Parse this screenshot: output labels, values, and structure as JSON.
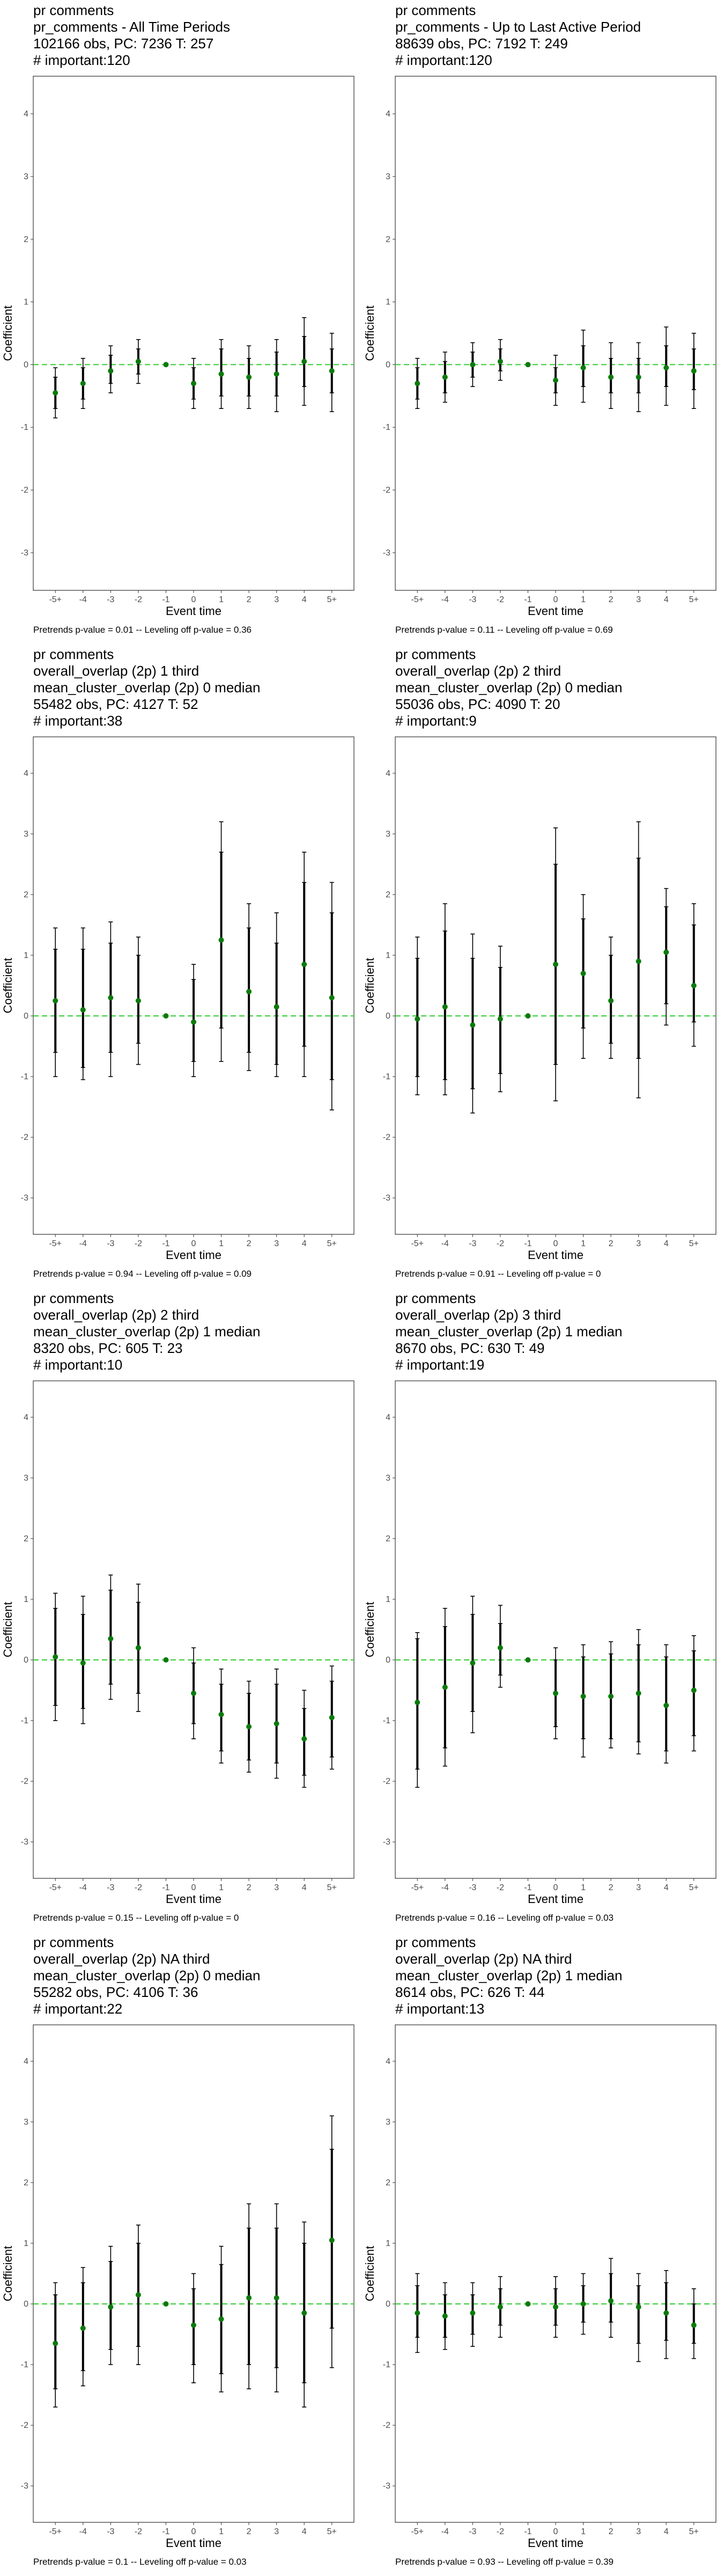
{
  "charts": [
    {
      "header": [
        "pr comments",
        "pr_comments - All Time Periods",
        "102166 obs, PC: 7236 T: 257",
        "# important:120"
      ],
      "footer": "Pretrends p-value = 0.01 -- Leveling off p-value = 0.36"
    },
    {
      "header": [
        "pr comments",
        "pr_comments - Up to Last Active Period",
        "88639 obs, PC: 7192 T: 249",
        "# important:120"
      ],
      "footer": "Pretrends p-value = 0.11 -- Leveling off p-value = 0.69"
    },
    {
      "header": [
        "pr comments",
        "overall_overlap (2p) 1 third",
        "mean_cluster_overlap (2p) 0 median",
        "55482 obs, PC: 4127 T: 52",
        "# important:38"
      ],
      "footer": "Pretrends p-value = 0.94 -- Leveling off p-value = 0.09"
    },
    {
      "header": [
        "pr comments",
        "overall_overlap (2p) 2 third",
        "mean_cluster_overlap (2p) 0 median",
        "55036 obs, PC: 4090 T: 20",
        "# important:9"
      ],
      "footer": "Pretrends p-value = 0.91 -- Leveling off p-value = 0"
    },
    {
      "header": [
        "pr comments",
        "overall_overlap (2p) 2 third",
        "mean_cluster_overlap (2p) 1 median",
        "8320 obs, PC: 605 T: 23",
        "# important:10"
      ],
      "footer": "Pretrends p-value = 0.15 -- Leveling off p-value = 0"
    },
    {
      "header": [
        "pr comments",
        "overall_overlap (2p) 3 third",
        "mean_cluster_overlap (2p) 1 median",
        "8670 obs, PC: 630 T: 49",
        "# important:19"
      ],
      "footer": "Pretrends p-value = 0.16 -- Leveling off p-value = 0.03"
    },
    {
      "header": [
        "pr comments",
        "overall_overlap (2p) NA third",
        "mean_cluster_overlap (2p) 0 median",
        "55282 obs, PC: 4106 T: 36",
        "# important:22"
      ],
      "footer": "Pretrends p-value = 0.1 -- Leveling off p-value = 0.03"
    },
    {
      "header": [
        "pr comments",
        "overall_overlap (2p) NA third",
        "mean_cluster_overlap (2p) 1 median",
        "8614 obs, PC: 626 T: 44",
        "# important:13"
      ],
      "footer": "Pretrends p-value = 0.93 -- Leveling off p-value = 0.39"
    }
  ],
  "chart_data": [
    {
      "type": "scatter",
      "categories": [
        "-5+",
        "-4",
        "-3",
        "-2",
        "-1",
        "0",
        "1",
        "2",
        "3",
        "4",
        "5+"
      ],
      "estimates": [
        -0.45,
        -0.3,
        -0.1,
        0.05,
        0,
        -0.3,
        -0.15,
        -0.2,
        -0.15,
        0.05,
        -0.1
      ],
      "ci_outer": [
        [
          -0.85,
          -0.05
        ],
        [
          -0.7,
          0.1
        ],
        [
          -0.45,
          0.3
        ],
        [
          -0.3,
          0.4
        ],
        [
          0,
          0
        ],
        [
          -0.7,
          0.1
        ],
        [
          -0.7,
          0.4
        ],
        [
          -0.7,
          0.3
        ],
        [
          -0.75,
          0.4
        ],
        [
          -0.65,
          0.75
        ],
        [
          -0.75,
          0.5
        ]
      ],
      "ci_inner": [
        [
          -0.7,
          -0.2
        ],
        [
          -0.55,
          -0.05
        ],
        [
          -0.3,
          0.15
        ],
        [
          -0.15,
          0.25
        ],
        [
          0,
          0
        ],
        [
          -0.55,
          -0.05
        ],
        [
          -0.5,
          0.25
        ],
        [
          -0.5,
          0.1
        ],
        [
          -0.5,
          0.2
        ],
        [
          -0.35,
          0.45
        ],
        [
          -0.45,
          0.25
        ]
      ],
      "xlabel": "Event time",
      "ylabel": "Coefficient",
      "yticks": [
        -3,
        -2,
        -1,
        0,
        1,
        2,
        3,
        4
      ],
      "ylim": [
        -3.6,
        4.6
      ],
      "reference_line": 0
    },
    {
      "type": "scatter",
      "categories": [
        "-5+",
        "-4",
        "-3",
        "-2",
        "-1",
        "0",
        "1",
        "2",
        "3",
        "4",
        "5+"
      ],
      "estimates": [
        -0.3,
        -0.2,
        0,
        0.05,
        0,
        -0.25,
        -0.05,
        -0.2,
        -0.2,
        -0.05,
        -0.1
      ],
      "ci_outer": [
        [
          -0.7,
          0.1
        ],
        [
          -0.6,
          0.2
        ],
        [
          -0.35,
          0.35
        ],
        [
          -0.25,
          0.4
        ],
        [
          0,
          0
        ],
        [
          -0.65,
          0.15
        ],
        [
          -0.6,
          0.55
        ],
        [
          -0.7,
          0.35
        ],
        [
          -0.75,
          0.35
        ],
        [
          -0.65,
          0.6
        ],
        [
          -0.7,
          0.5
        ]
      ],
      "ci_inner": [
        [
          -0.55,
          -0.05
        ],
        [
          -0.45,
          0.05
        ],
        [
          -0.2,
          0.2
        ],
        [
          -0.1,
          0.25
        ],
        [
          0,
          0
        ],
        [
          -0.45,
          -0.05
        ],
        [
          -0.35,
          0.3
        ],
        [
          -0.45,
          0.1
        ],
        [
          -0.45,
          0.1
        ],
        [
          -0.35,
          0.3
        ],
        [
          -0.4,
          0.25
        ]
      ],
      "xlabel": "Event time",
      "ylabel": "Coefficient",
      "yticks": [
        -3,
        -2,
        -1,
        0,
        1,
        2,
        3,
        4
      ],
      "ylim": [
        -3.6,
        4.6
      ],
      "reference_line": 0
    },
    {
      "type": "scatter",
      "categories": [
        "-5+",
        "-4",
        "-3",
        "-2",
        "-1",
        "0",
        "1",
        "2",
        "3",
        "4",
        "5+"
      ],
      "estimates": [
        0.25,
        0.1,
        0.3,
        0.25,
        0,
        -0.1,
        1.25,
        0.4,
        0.15,
        0.85,
        0.3
      ],
      "ci_outer": [
        [
          -1.0,
          1.45
        ],
        [
          -1.05,
          1.45
        ],
        [
          -1.0,
          1.55
        ],
        [
          -0.8,
          1.3
        ],
        [
          0,
          0
        ],
        [
          -1.0,
          0.85
        ],
        [
          -0.75,
          3.2
        ],
        [
          -0.9,
          1.85
        ],
        [
          -1.0,
          1.7
        ],
        [
          -1.0,
          2.7
        ],
        [
          -1.55,
          2.2
        ]
      ],
      "ci_inner": [
        [
          -0.6,
          1.1
        ],
        [
          -0.85,
          1.1
        ],
        [
          -0.6,
          1.2
        ],
        [
          -0.45,
          1.0
        ],
        [
          0,
          0
        ],
        [
          -0.75,
          0.6
        ],
        [
          -0.2,
          2.7
        ],
        [
          -0.6,
          1.45
        ],
        [
          -0.8,
          1.2
        ],
        [
          -0.5,
          2.2
        ],
        [
          -1.05,
          1.7
        ]
      ],
      "xlabel": "Event time",
      "ylabel": "Coefficient",
      "yticks": [
        -3,
        -2,
        -1,
        0,
        1,
        2,
        3,
        4
      ],
      "ylim": [
        -3.6,
        4.6
      ],
      "reference_line": 0
    },
    {
      "type": "scatter",
      "categories": [
        "-5+",
        "-4",
        "-3",
        "-2",
        "-1",
        "0",
        "1",
        "2",
        "3",
        "4",
        "5+"
      ],
      "estimates": [
        -0.05,
        0.15,
        -0.15,
        -0.05,
        0,
        0.85,
        0.7,
        0.25,
        0.9,
        1.05,
        0.5
      ],
      "ci_outer": [
        [
          -1.3,
          1.3
        ],
        [
          -1.3,
          1.85
        ],
        [
          -1.6,
          1.35
        ],
        [
          -1.25,
          1.15
        ],
        [
          0,
          0
        ],
        [
          -1.4,
          3.1
        ],
        [
          -0.7,
          2.0
        ],
        [
          -0.7,
          1.3
        ],
        [
          -1.35,
          3.2
        ],
        [
          -0.15,
          2.1
        ],
        [
          -0.5,
          1.85
        ]
      ],
      "ci_inner": [
        [
          -1.0,
          0.95
        ],
        [
          -1.05,
          1.4
        ],
        [
          -1.2,
          0.95
        ],
        [
          -0.95,
          0.8
        ],
        [
          0,
          0
        ],
        [
          -0.8,
          2.5
        ],
        [
          -0.2,
          1.6
        ],
        [
          -0.45,
          1.0
        ],
        [
          -0.7,
          2.6
        ],
        [
          0.2,
          1.8
        ],
        [
          -0.1,
          1.5
        ]
      ],
      "xlabel": "Event time",
      "ylabel": "Coefficient",
      "yticks": [
        -3,
        -2,
        -1,
        0,
        1,
        2,
        3,
        4
      ],
      "ylim": [
        -3.6,
        4.6
      ],
      "reference_line": 0
    },
    {
      "type": "scatter",
      "categories": [
        "-5+",
        "-4",
        "-3",
        "-2",
        "-1",
        "0",
        "1",
        "2",
        "3",
        "4",
        "5+"
      ],
      "estimates": [
        0.05,
        -0.05,
        0.35,
        0.2,
        0,
        -0.55,
        -0.9,
        -1.1,
        -1.05,
        -1.3,
        -0.95
      ],
      "ci_outer": [
        [
          -1.0,
          1.1
        ],
        [
          -1.05,
          1.05
        ],
        [
          -0.65,
          1.4
        ],
        [
          -0.85,
          1.25
        ],
        [
          0,
          0
        ],
        [
          -1.3,
          0.2
        ],
        [
          -1.7,
          -0.15
        ],
        [
          -1.85,
          -0.35
        ],
        [
          -1.95,
          -0.15
        ],
        [
          -2.1,
          -0.5
        ],
        [
          -1.8,
          -0.1
        ]
      ],
      "ci_inner": [
        [
          -0.75,
          0.85
        ],
        [
          -0.8,
          0.75
        ],
        [
          -0.4,
          1.15
        ],
        [
          -0.55,
          0.95
        ],
        [
          0,
          0
        ],
        [
          -1.05,
          -0.05
        ],
        [
          -1.5,
          -0.4
        ],
        [
          -1.65,
          -0.55
        ],
        [
          -1.7,
          -0.4
        ],
        [
          -1.9,
          -0.8
        ],
        [
          -1.6,
          -0.35
        ]
      ],
      "xlabel": "Event time",
      "ylabel": "Coefficient",
      "yticks": [
        -3,
        -2,
        -1,
        0,
        1,
        2,
        3,
        4
      ],
      "ylim": [
        -3.6,
        4.6
      ],
      "reference_line": 0
    },
    {
      "type": "scatter",
      "categories": [
        "-5+",
        "-4",
        "-3",
        "-2",
        "-1",
        "0",
        "1",
        "2",
        "3",
        "4",
        "5+"
      ],
      "estimates": [
        -0.7,
        -0.45,
        -0.05,
        0.2,
        0,
        -0.55,
        -0.6,
        -0.6,
        -0.55,
        -0.75,
        -0.5
      ],
      "ci_outer": [
        [
          -2.1,
          0.45
        ],
        [
          -1.75,
          0.85
        ],
        [
          -1.2,
          1.05
        ],
        [
          -0.45,
          0.9
        ],
        [
          0,
          0
        ],
        [
          -1.3,
          0.2
        ],
        [
          -1.6,
          0.25
        ],
        [
          -1.45,
          0.3
        ],
        [
          -1.55,
          0.5
        ],
        [
          -1.7,
          0.25
        ],
        [
          -1.5,
          0.4
        ]
      ],
      "ci_inner": [
        [
          -1.8,
          0.35
        ],
        [
          -1.45,
          0.55
        ],
        [
          -0.85,
          0.75
        ],
        [
          -0.25,
          0.6
        ],
        [
          0,
          0
        ],
        [
          -1.1,
          0.0
        ],
        [
          -1.3,
          0.05
        ],
        [
          -1.3,
          0.1
        ],
        [
          -1.35,
          0.25
        ],
        [
          -1.5,
          0.05
        ],
        [
          -1.25,
          0.15
        ]
      ],
      "xlabel": "Event time",
      "ylabel": "Coefficient",
      "yticks": [
        -3,
        -2,
        -1,
        0,
        1,
        2,
        3,
        4
      ],
      "ylim": [
        -3.6,
        4.6
      ],
      "reference_line": 0
    },
    {
      "type": "scatter",
      "categories": [
        "-5+",
        "-4",
        "-3",
        "-2",
        "-1",
        "0",
        "1",
        "2",
        "3",
        "4",
        "5+"
      ],
      "estimates": [
        -0.65,
        -0.4,
        -0.05,
        0.15,
        0,
        -0.35,
        -0.25,
        0.1,
        0.1,
        -0.15,
        1.05
      ],
      "ci_outer": [
        [
          -1.7,
          0.35
        ],
        [
          -1.35,
          0.6
        ],
        [
          -1.0,
          0.95
        ],
        [
          -1.0,
          1.3
        ],
        [
          0,
          0
        ],
        [
          -1.3,
          0.5
        ],
        [
          -1.45,
          0.95
        ],
        [
          -1.4,
          1.65
        ],
        [
          -1.45,
          1.65
        ],
        [
          -1.7,
          1.35
        ],
        [
          -1.05,
          3.1
        ]
      ],
      "ci_inner": [
        [
          -1.4,
          0.15
        ],
        [
          -1.1,
          0.35
        ],
        [
          -0.75,
          0.7
        ],
        [
          -0.7,
          1.0
        ],
        [
          0,
          0
        ],
        [
          -1.0,
          0.25
        ],
        [
          -1.15,
          0.65
        ],
        [
          -1.0,
          1.25
        ],
        [
          -1.05,
          1.25
        ],
        [
          -1.3,
          1.0
        ],
        [
          -0.4,
          2.55
        ]
      ],
      "xlabel": "Event time",
      "ylabel": "Coefficient",
      "yticks": [
        -3,
        -2,
        -1,
        0,
        1,
        2,
        3,
        4
      ],
      "ylim": [
        -3.6,
        4.6
      ],
      "reference_line": 0
    },
    {
      "type": "scatter",
      "categories": [
        "-5+",
        "-4",
        "-3",
        "-2",
        "-1",
        "0",
        "1",
        "2",
        "3",
        "4",
        "5+"
      ],
      "estimates": [
        -0.15,
        -0.2,
        -0.15,
        -0.05,
        0,
        -0.05,
        0.0,
        0.05,
        -0.05,
        -0.15,
        -0.35
      ],
      "ci_outer": [
        [
          -0.8,
          0.5
        ],
        [
          -0.75,
          0.35
        ],
        [
          -0.7,
          0.35
        ],
        [
          -0.55,
          0.45
        ],
        [
          0,
          0
        ],
        [
          -0.55,
          0.45
        ],
        [
          -0.5,
          0.5
        ],
        [
          -0.55,
          0.75
        ],
        [
          -0.95,
          0.5
        ],
        [
          -0.9,
          0.55
        ],
        [
          -0.9,
          0.25
        ]
      ],
      "ci_inner": [
        [
          -0.55,
          0.3
        ],
        [
          -0.55,
          0.15
        ],
        [
          -0.5,
          0.15
        ],
        [
          -0.35,
          0.25
        ],
        [
          0,
          0
        ],
        [
          -0.35,
          0.25
        ],
        [
          -0.3,
          0.3
        ],
        [
          -0.3,
          0.5
        ],
        [
          -0.65,
          0.3
        ],
        [
          -0.6,
          0.35
        ],
        [
          -0.65,
          0.0
        ]
      ],
      "xlabel": "Event time",
      "ylabel": "Coefficient",
      "yticks": [
        -3,
        -2,
        -1,
        0,
        1,
        2,
        3,
        4
      ],
      "ylim": [
        -3.6,
        4.6
      ],
      "reference_line": 0
    }
  ],
  "colors": {
    "point": "#0b7a0b",
    "errorbar": "#000000",
    "reference": "#33cc33",
    "panel_border": "#333333",
    "tick_text": "#4d4d4d"
  }
}
